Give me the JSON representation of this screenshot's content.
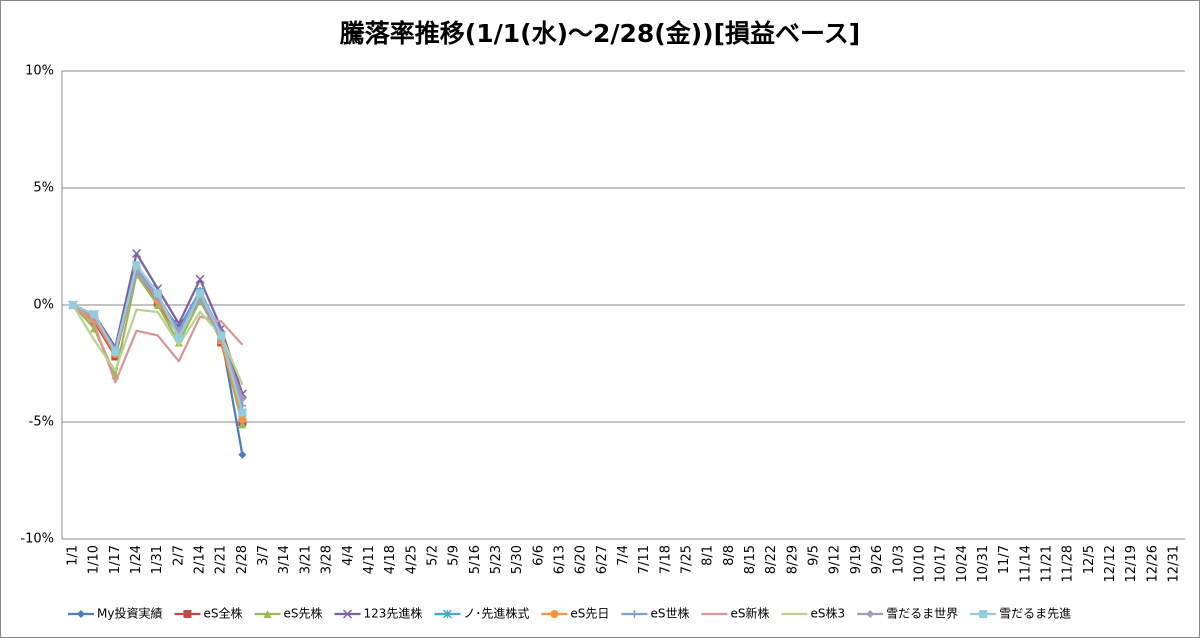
{
  "chart_data": {
    "type": "line",
    "title": "騰落率推移(1/1(水)～2/28(金))[損益ベース]",
    "categories": [
      "1/1",
      "1/10",
      "1/17",
      "1/24",
      "1/31",
      "2/7",
      "2/14",
      "2/21",
      "2/28",
      "3/7",
      "3/14",
      "3/21",
      "3/28",
      "4/4",
      "4/11",
      "4/18",
      "4/25",
      "5/2",
      "5/9",
      "5/16",
      "5/23",
      "5/30",
      "6/6",
      "6/13",
      "6/20",
      "6/27",
      "7/4",
      "7/11",
      "7/18",
      "7/25",
      "8/1",
      "8/8",
      "8/15",
      "8/22",
      "8/29",
      "9/5",
      "9/12",
      "9/19",
      "9/26",
      "10/3",
      "10/10",
      "10/17",
      "10/24",
      "10/31",
      "11/7",
      "11/14",
      "11/21",
      "11/28",
      "12/5",
      "12/12",
      "12/19",
      "12/26",
      "12/31"
    ],
    "series": [
      {
        "name": "My投資実績",
        "color": "#4a7ebb",
        "marker": "diamond",
        "values": [
          0,
          -0.5,
          -2.0,
          1.5,
          0.3,
          -1.0,
          0.6,
          -1.3,
          -6.4,
          null,
          null,
          null,
          null,
          null,
          null,
          null,
          null,
          null,
          null,
          null,
          null,
          null,
          null,
          null,
          null,
          null,
          null,
          null,
          null,
          null,
          null,
          null,
          null,
          null,
          null,
          null,
          null,
          null,
          null,
          null,
          null,
          null,
          null,
          null,
          null,
          null,
          null,
          null,
          null,
          null,
          null,
          null,
          null
        ]
      },
      {
        "name": "eS全株",
        "color": "#be4b48",
        "marker": "square",
        "values": [
          0,
          -0.7,
          -2.2,
          1.5,
          0.1,
          -1.3,
          0.5,
          -1.6,
          -5.0,
          null,
          null,
          null,
          null,
          null,
          null,
          null,
          null,
          null,
          null,
          null,
          null,
          null,
          null,
          null,
          null,
          null,
          null,
          null,
          null,
          null,
          null,
          null,
          null,
          null,
          null,
          null,
          null,
          null,
          null,
          null,
          null,
          null,
          null,
          null,
          null,
          null,
          null,
          null,
          null,
          null,
          null,
          null,
          null
        ]
      },
      {
        "name": "eS先株",
        "color": "#98b954",
        "marker": "triangle",
        "values": [
          0,
          -1.0,
          -3.0,
          1.3,
          0.0,
          -1.6,
          0.2,
          -1.5,
          -5.1,
          null,
          null,
          null,
          null,
          null,
          null,
          null,
          null,
          null,
          null,
          null,
          null,
          null,
          null,
          null,
          null,
          null,
          null,
          null,
          null,
          null,
          null,
          null,
          null,
          null,
          null,
          null,
          null,
          null,
          null,
          null,
          null,
          null,
          null,
          null,
          null,
          null,
          null,
          null,
          null,
          null,
          null,
          null,
          null
        ]
      },
      {
        "name": "123先進株",
        "color": "#7d60a0",
        "marker": "x",
        "values": [
          0,
          -0.4,
          -1.8,
          2.2,
          0.7,
          -0.8,
          1.1,
          -1.0,
          -3.8,
          null,
          null,
          null,
          null,
          null,
          null,
          null,
          null,
          null,
          null,
          null,
          null,
          null,
          null,
          null,
          null,
          null,
          null,
          null,
          null,
          null,
          null,
          null,
          null,
          null,
          null,
          null,
          null,
          null,
          null,
          null,
          null,
          null,
          null,
          null,
          null,
          null,
          null,
          null,
          null,
          null,
          null,
          null,
          null
        ]
      },
      {
        "name": "ノ･先進株式",
        "color": "#46aac5",
        "marker": "star",
        "values": [
          0,
          -0.5,
          -2.0,
          1.7,
          0.4,
          -1.2,
          0.6,
          -1.3,
          -4.6,
          null,
          null,
          null,
          null,
          null,
          null,
          null,
          null,
          null,
          null,
          null,
          null,
          null,
          null,
          null,
          null,
          null,
          null,
          null,
          null,
          null,
          null,
          null,
          null,
          null,
          null,
          null,
          null,
          null,
          null,
          null,
          null,
          null,
          null,
          null,
          null,
          null,
          null,
          null,
          null,
          null,
          null,
          null,
          null
        ]
      },
      {
        "name": "eS先日",
        "color": "#f69240",
        "marker": "circle",
        "values": [
          0,
          -0.6,
          -2.1,
          1.5,
          0.2,
          -1.3,
          0.4,
          -1.5,
          -4.9,
          null,
          null,
          null,
          null,
          null,
          null,
          null,
          null,
          null,
          null,
          null,
          null,
          null,
          null,
          null,
          null,
          null,
          null,
          null,
          null,
          null,
          null,
          null,
          null,
          null,
          null,
          null,
          null,
          null,
          null,
          null,
          null,
          null,
          null,
          null,
          null,
          null,
          null,
          null,
          null,
          null,
          null,
          null,
          null
        ]
      },
      {
        "name": "eS世株",
        "color": "#7e9fd3",
        "marker": "plus",
        "values": [
          0,
          -0.5,
          -1.9,
          1.6,
          0.4,
          -1.1,
          0.6,
          -1.2,
          -4.3,
          null,
          null,
          null,
          null,
          null,
          null,
          null,
          null,
          null,
          null,
          null,
          null,
          null,
          null,
          null,
          null,
          null,
          null,
          null,
          null,
          null,
          null,
          null,
          null,
          null,
          null,
          null,
          null,
          null,
          null,
          null,
          null,
          null,
          null,
          null,
          null,
          null,
          null,
          null,
          null,
          null,
          null,
          null,
          null
        ]
      },
      {
        "name": "eS新株",
        "color": "#d99694",
        "marker": "none",
        "values": [
          0,
          -0.8,
          -3.3,
          -1.1,
          -1.3,
          -2.4,
          -0.5,
          -0.7,
          -1.7,
          null,
          null,
          null,
          null,
          null,
          null,
          null,
          null,
          null,
          null,
          null,
          null,
          null,
          null,
          null,
          null,
          null,
          null,
          null,
          null,
          null,
          null,
          null,
          null,
          null,
          null,
          null,
          null,
          null,
          null,
          null,
          null,
          null,
          null,
          null,
          null,
          null,
          null,
          null,
          null,
          null,
          null,
          null,
          null
        ]
      },
      {
        "name": "eS株3",
        "color": "#b9d38f",
        "marker": "none",
        "values": [
          0,
          -1.5,
          -2.8,
          -0.2,
          -0.3,
          -1.7,
          -0.3,
          -1.3,
          -3.4,
          null,
          null,
          null,
          null,
          null,
          null,
          null,
          null,
          null,
          null,
          null,
          null,
          null,
          null,
          null,
          null,
          null,
          null,
          null,
          null,
          null,
          null,
          null,
          null,
          null,
          null,
          null,
          null,
          null,
          null,
          null,
          null,
          null,
          null,
          null,
          null,
          null,
          null,
          null,
          null,
          null,
          null,
          null,
          null
        ]
      },
      {
        "name": "雪だるま世界",
        "color": "#a898c0",
        "marker": "diamond",
        "values": [
          0,
          -0.5,
          -2.0,
          1.4,
          0.3,
          -1.2,
          0.3,
          -1.4,
          -4.0,
          null,
          null,
          null,
          null,
          null,
          null,
          null,
          null,
          null,
          null,
          null,
          null,
          null,
          null,
          null,
          null,
          null,
          null,
          null,
          null,
          null,
          null,
          null,
          null,
          null,
          null,
          null,
          null,
          null,
          null,
          null,
          null,
          null,
          null,
          null,
          null,
          null,
          null,
          null,
          null,
          null,
          null,
          null,
          null
        ]
      },
      {
        "name": "雪だるま先進",
        "color": "#93cddd",
        "marker": "square",
        "values": [
          0,
          -0.4,
          -2.0,
          1.7,
          0.5,
          -1.4,
          0.5,
          -1.3,
          -4.6,
          null,
          null,
          null,
          null,
          null,
          null,
          null,
          null,
          null,
          null,
          null,
          null,
          null,
          null,
          null,
          null,
          null,
          null,
          null,
          null,
          null,
          null,
          null,
          null,
          null,
          null,
          null,
          null,
          null,
          null,
          null,
          null,
          null,
          null,
          null,
          null,
          null,
          null,
          null,
          null,
          null,
          null,
          null,
          null
        ]
      }
    ],
    "ylim": [
      -10,
      10
    ],
    "yticks": [
      {
        "value": -10,
        "label": "-10%"
      },
      {
        "value": -5,
        "label": "-5%"
      },
      {
        "value": 0,
        "label": "0%"
      },
      {
        "value": 5,
        "label": "5%"
      },
      {
        "value": 10,
        "label": "10%"
      }
    ],
    "grid": true,
    "legend": "bottom"
  }
}
